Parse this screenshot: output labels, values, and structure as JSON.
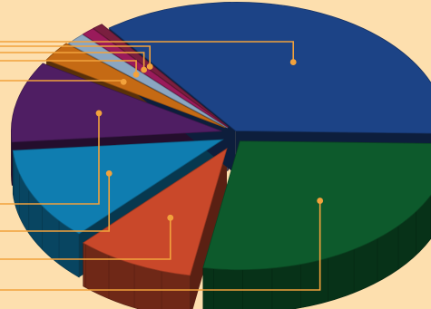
{
  "chart_data": {
    "type": "pie",
    "title": "",
    "style": "3d-exploded",
    "background": "#FDDFAE",
    "leader_color": "#F2A23C",
    "labels_visible": false,
    "slices": [
      {
        "color": "#1C4386",
        "value": 35.0
      },
      {
        "color": "#0D5A2C",
        "value": 27.0
      },
      {
        "color": "#C9482A",
        "value": 9.0
      },
      {
        "color": "#0F7DB0",
        "value": 11.5
      },
      {
        "color": "#4F1E63",
        "value": 10.0
      },
      {
        "color": "#C56A14",
        "value": 2.5
      },
      {
        "color": "#8BA6C1",
        "value": 1.5
      },
      {
        "color": "#9A1B5B",
        "value": 1.0
      },
      {
        "color": "#7A1F3F",
        "value": 0.8
      }
    ]
  }
}
